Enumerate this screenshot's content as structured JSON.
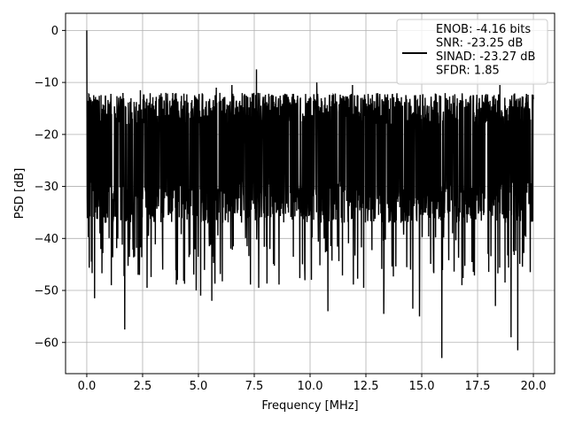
{
  "chart_data": {
    "type": "line",
    "title": "",
    "xlabel": "Frequency [MHz]",
    "ylabel": "PSD [dB]",
    "xlim": [
      -0.95,
      20.95
    ],
    "ylim": [
      -66,
      3.3
    ],
    "x_ticks": [
      0.0,
      2.5,
      5.0,
      7.5,
      10.0,
      12.5,
      15.0,
      17.5,
      20.0
    ],
    "x_tick_labels": [
      "0.0",
      "2.5",
      "5.0",
      "7.5",
      "10.0",
      "12.5",
      "15.0",
      "17.5",
      "20.0"
    ],
    "y_ticks": [
      0,
      -10,
      -20,
      -30,
      -40,
      -50,
      -60
    ],
    "y_tick_labels": [
      "0",
      "−10",
      "−20",
      "−30",
      "−40",
      "−50",
      "−60"
    ],
    "grid": true,
    "legend_position": "top-right",
    "series": [
      {
        "name": "ENOB: -4.16 bits\nSNR: -23.25 dB\nSINAD: -23.27 dB\nSFDR: 1.85",
        "color": "#000000",
        "x_range_mhz": [
          0.0,
          20.0
        ],
        "envelope": {
          "peak_value_db": 0.0,
          "typical_upper_db": -13,
          "typical_lower_db": -35,
          "max_outside_dc_db": -7.5,
          "min_db": -63
        },
        "notable_points": [
          {
            "x": 0.0,
            "y": 0.0
          },
          {
            "x": 0.35,
            "y": -51.5
          },
          {
            "x": 1.1,
            "y": -49
          },
          {
            "x": 1.7,
            "y": -57.5
          },
          {
            "x": 2.3,
            "y": -47
          },
          {
            "x": 2.4,
            "y": -11.5
          },
          {
            "x": 2.7,
            "y": -49.5
          },
          {
            "x": 3.4,
            "y": -46
          },
          {
            "x": 4.9,
            "y": -50
          },
          {
            "x": 5.1,
            "y": -51
          },
          {
            "x": 5.6,
            "y": -52
          },
          {
            "x": 5.8,
            "y": -11
          },
          {
            "x": 6.5,
            "y": -10.5
          },
          {
            "x": 7.6,
            "y": -7.5
          },
          {
            "x": 7.7,
            "y": -49.5
          },
          {
            "x": 10.3,
            "y": -10
          },
          {
            "x": 10.8,
            "y": -54
          },
          {
            "x": 11.9,
            "y": -10.5
          },
          {
            "x": 12.4,
            "y": -49.5
          },
          {
            "x": 13.3,
            "y": -54.5
          },
          {
            "x": 14.5,
            "y": -46
          },
          {
            "x": 14.6,
            "y": -53.5
          },
          {
            "x": 14.9,
            "y": -55
          },
          {
            "x": 15.9,
            "y": -63
          },
          {
            "x": 16.8,
            "y": -49
          },
          {
            "x": 18.3,
            "y": -53
          },
          {
            "x": 18.5,
            "y": -10.5
          },
          {
            "x": 19.0,
            "y": -59
          },
          {
            "x": 19.3,
            "y": -61.5
          }
        ]
      }
    ]
  }
}
